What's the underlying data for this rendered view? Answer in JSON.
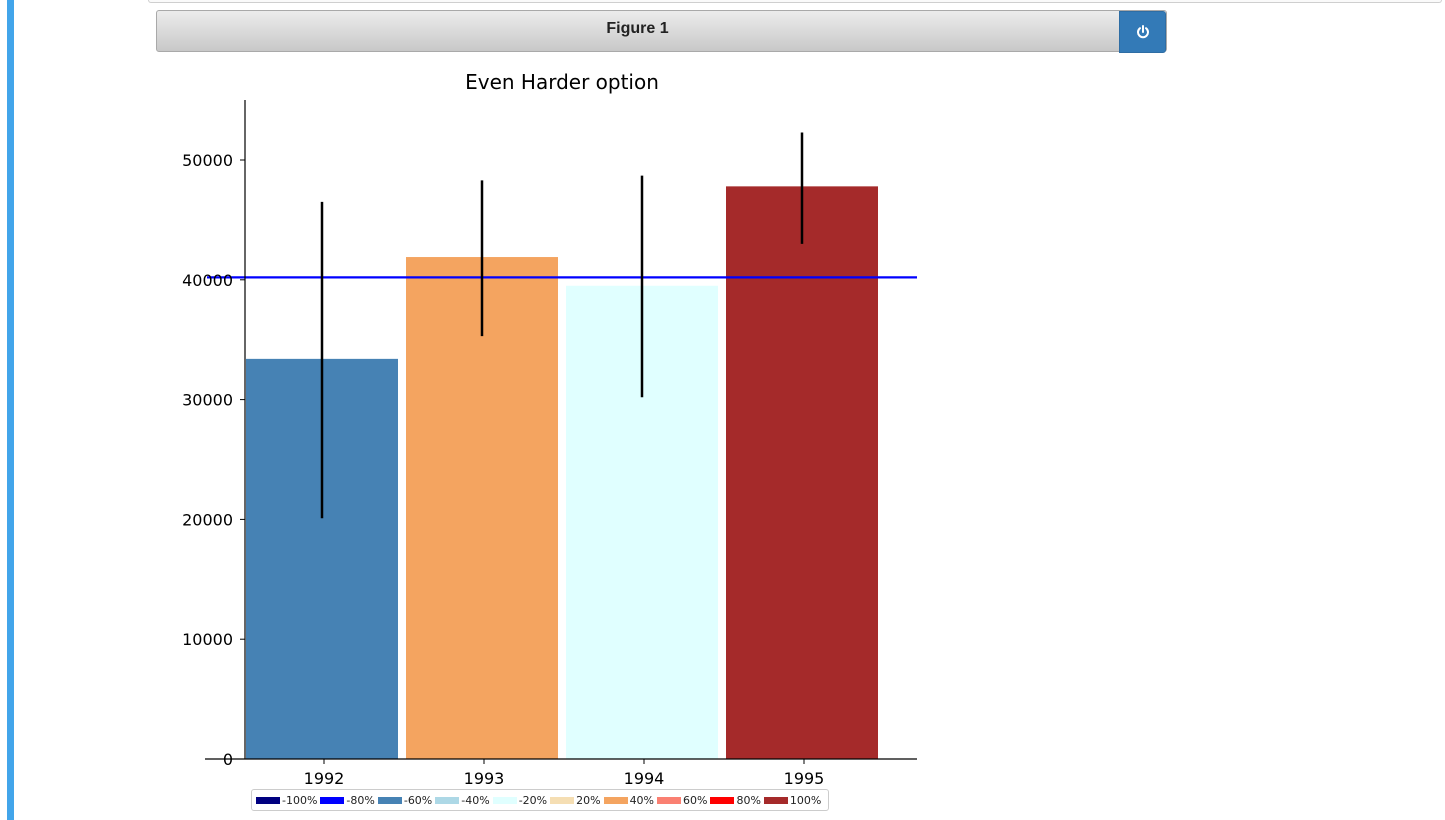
{
  "figure": {
    "title": "Figure 1"
  },
  "icons": {
    "power": "power-icon"
  },
  "chart_data": {
    "type": "bar",
    "title": "Even Harder option",
    "categories": [
      "1992",
      "1993",
      "1994",
      "1995"
    ],
    "values": [
      33400,
      41900,
      39500,
      47800
    ],
    "errors": [
      [
        20100,
        46500
      ],
      [
        35300,
        48300
      ],
      [
        30200,
        48700
      ],
      [
        43000,
        52300
      ]
    ],
    "bar_colors": [
      "#4682b4",
      "#f4a460",
      "#e0ffff",
      "#a52a2a"
    ],
    "reference_line": {
      "value": 40200,
      "color": "#0000ff"
    },
    "ylim": [
      0,
      55000
    ],
    "yticks": [
      0,
      10000,
      20000,
      30000,
      40000,
      50000
    ],
    "xlabel": "",
    "ylabel": "",
    "legend": {
      "placement": "bottom",
      "items": [
        {
          "label": "-100%",
          "color": "#000080"
        },
        {
          "label": "-80%",
          "color": "#0000ff"
        },
        {
          "label": "-60%",
          "color": "#4682b4"
        },
        {
          "label": "-40%",
          "color": "#add8e6"
        },
        {
          "label": "-20%",
          "color": "#e0ffff"
        },
        {
          "label": "20%",
          "color": "#f5deb3"
        },
        {
          "label": "40%",
          "color": "#f4a460"
        },
        {
          "label": "60%",
          "color": "#fa8072"
        },
        {
          "label": "80%",
          "color": "#ff0000"
        },
        {
          "label": "100%",
          "color": "#a52a2a"
        }
      ]
    }
  }
}
